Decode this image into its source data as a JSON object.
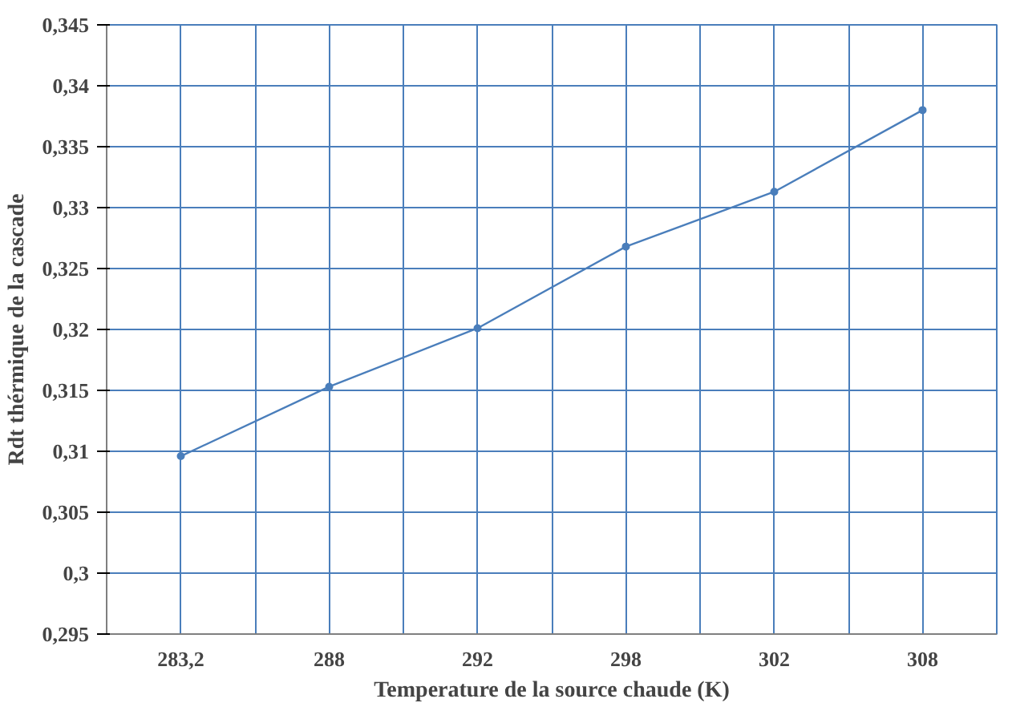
{
  "chart_data": {
    "type": "line",
    "xlabel": "Temperature de la source chaude (K)",
    "ylabel": "Rdt thérmique de la cascade",
    "categories": [
      "283,2",
      "288",
      "292",
      "298",
      "302",
      "308"
    ],
    "series": [
      {
        "color": "#4a7ebb",
        "values": [
          0.3096,
          0.3153,
          0.3201,
          0.3268,
          0.3313,
          0.338
        ]
      }
    ],
    "ylim": [
      0.295,
      0.345
    ],
    "yticks": [
      {
        "value": 0.295,
        "label": "0,295"
      },
      {
        "value": 0.3,
        "label": "0,3"
      },
      {
        "value": 0.305,
        "label": "0,305"
      },
      {
        "value": 0.31,
        "label": "0,31"
      },
      {
        "value": 0.315,
        "label": "0,315"
      },
      {
        "value": 0.32,
        "label": "0,32"
      },
      {
        "value": 0.325,
        "label": "0,325"
      },
      {
        "value": 0.33,
        "label": "0,33"
      },
      {
        "value": 0.335,
        "label": "0,335"
      },
      {
        "value": 0.34,
        "label": "0,34"
      },
      {
        "value": 0.345,
        "label": "0,345"
      }
    ],
    "grid": true,
    "marker": "circle",
    "line_style": "solid"
  }
}
